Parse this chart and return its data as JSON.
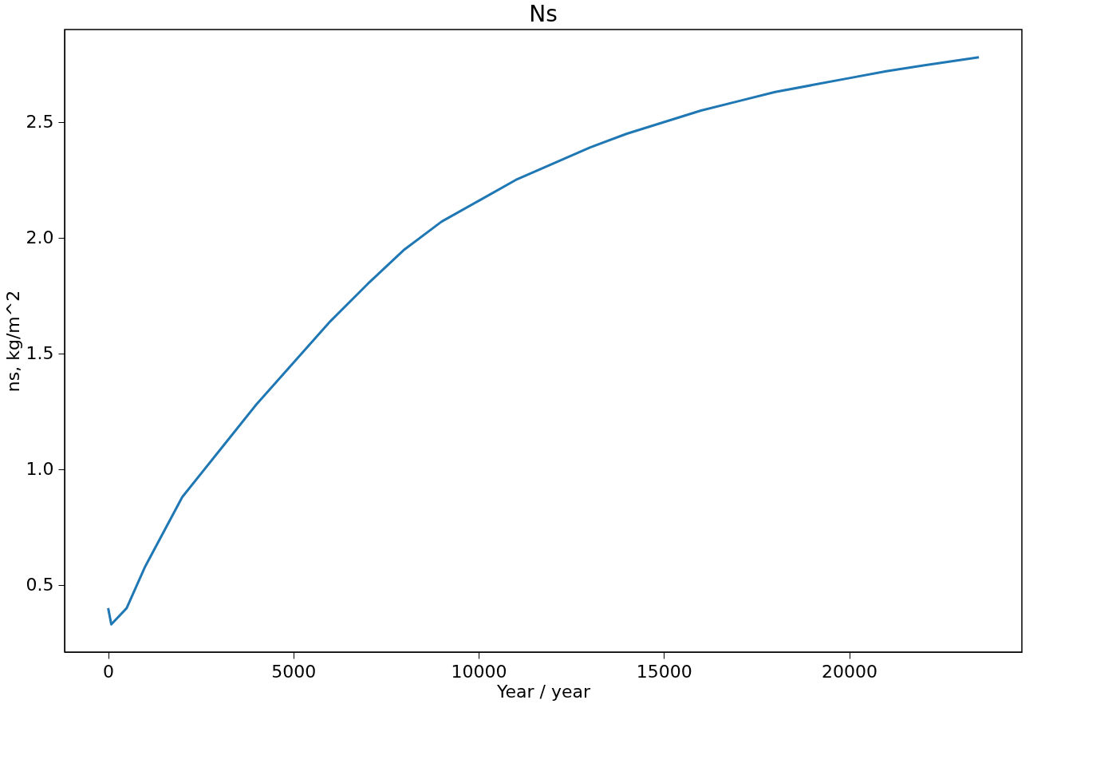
{
  "chart_data": {
    "type": "line",
    "title": "Ns",
    "xlabel": "Year / year",
    "ylabel": "ns, kg/m^2",
    "x": [
      0,
      85,
      500,
      1000,
      2000,
      3000,
      4000,
      5000,
      6000,
      7000,
      8000,
      9000,
      10000,
      11000,
      12000,
      13000,
      14000,
      15000,
      16000,
      17000,
      18000,
      19000,
      20000,
      21000,
      22000,
      23500
    ],
    "series": [
      {
        "color": "#1f77b4",
        "values": [
          0.4,
          0.33,
          0.4,
          0.58,
          0.88,
          1.08,
          1.28,
          1.46,
          1.64,
          1.8,
          1.95,
          2.07,
          2.16,
          2.25,
          2.32,
          2.39,
          2.45,
          2.5,
          2.55,
          2.59,
          2.63,
          2.66,
          2.69,
          2.72,
          2.745,
          2.78
        ]
      }
    ],
    "xlim": [
      -1175,
      24660
    ],
    "ylim": [
      0.21,
      2.9
    ],
    "xticks": [
      0,
      5000,
      10000,
      15000,
      20000
    ],
    "yticks": [
      0.5,
      {
        "value": 1,
        "label": "1.0"
      },
      1.5,
      {
        "value": 2,
        "label": "2.0"
      },
      2.5
    ],
    "grid": false
  }
}
